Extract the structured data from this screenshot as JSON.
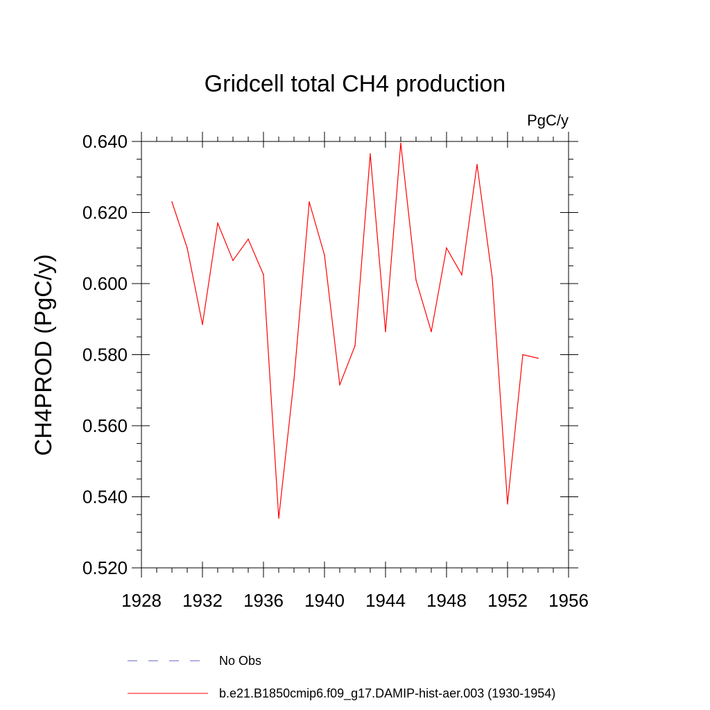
{
  "chart_data": {
    "type": "line",
    "title": "Gridcell total CH4 production",
    "units_label": "PgC/y",
    "ylabel": "CH4PROD  (PgC/y)",
    "xlabel": "",
    "xlim": [
      1928,
      1956
    ],
    "ylim": [
      0.52,
      0.64
    ],
    "x_ticks": [
      1928,
      1932,
      1936,
      1940,
      1944,
      1948,
      1952,
      1956
    ],
    "x_tick_labels": [
      "1928",
      "1932",
      "1936",
      "1940",
      "1944",
      "1948",
      "1952",
      "1956"
    ],
    "y_ticks": [
      0.52,
      0.54,
      0.56,
      0.58,
      0.6,
      0.62,
      0.64
    ],
    "y_tick_labels": [
      "0.520",
      "0.540",
      "0.560",
      "0.580",
      "0.600",
      "0.620",
      "0.640"
    ],
    "grid": false,
    "legend_position": "bottom",
    "series": [
      {
        "name": "b.e21.B1850cmip6.f09_g17.DAMIP-hist-aer.003 (1930-1954)",
        "color": "#ff0000",
        "style": "solid",
        "x": [
          1930,
          1931,
          1932,
          1933,
          1934,
          1935,
          1936,
          1937,
          1938,
          1939,
          1940,
          1941,
          1942,
          1943,
          1944,
          1945,
          1946,
          1947,
          1948,
          1949,
          1950,
          1951,
          1952,
          1953,
          1954
        ],
        "y": [
          0.623,
          0.61,
          0.5885,
          0.617,
          0.6065,
          0.6125,
          0.6025,
          0.534,
          0.573,
          0.623,
          0.608,
          0.5715,
          0.5825,
          0.6365,
          0.5865,
          0.6395,
          0.601,
          0.5865,
          0.61,
          0.6025,
          0.6335,
          0.6015,
          0.538,
          0.58,
          0.579
        ]
      }
    ],
    "legend": [
      {
        "label": "No Obs",
        "color": "#6060c0",
        "style": "dashed"
      },
      {
        "label": "b.e21.B1850cmip6.f09_g17.DAMIP-hist-aer.003 (1930-1954)",
        "color": "#ff0000",
        "style": "solid"
      }
    ]
  }
}
